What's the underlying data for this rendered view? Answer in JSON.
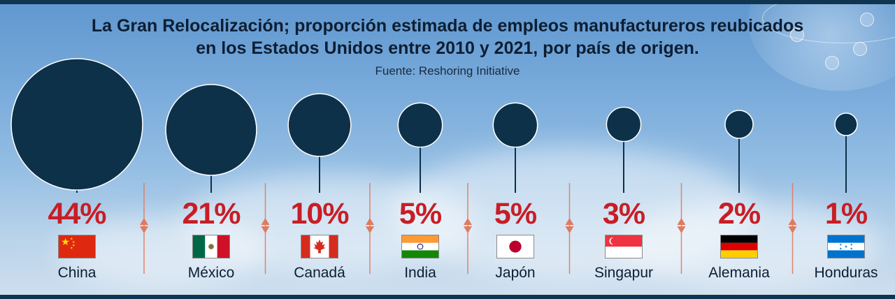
{
  "title_line1": "La Gran Relocalización; proporción estimada de empleos manufactureros reubicados",
  "title_line2": "en los Estados Unidos entre 2010 y 2021, por país de origen.",
  "source": "Fuente: Reshoring Initiative",
  "colors": {
    "bubble": "#0d3149",
    "percent": "#c81d25",
    "text": "#0d1e33"
  },
  "chart_data": {
    "type": "bubble",
    "title": "La Gran Relocalización; proporción estimada de empleos manufactureros reubicados en los Estados Unidos entre 2010 y 2021, por país de origen.",
    "value_unit": "%",
    "categories": [
      "China",
      "México",
      "Canadá",
      "India",
      "Japón",
      "Singapur",
      "Alemania",
      "Honduras"
    ],
    "values": [
      44,
      21,
      10,
      5,
      5,
      3,
      2,
      1
    ],
    "labels": [
      "44%",
      "21%",
      "10%",
      "5%",
      "5%",
      "3%",
      "2%",
      "1%"
    ],
    "flags": [
      "china-flag-icon",
      "mexico-flag-icon",
      "canada-flag-icon",
      "india-flag-icon",
      "japan-flag-icon",
      "singapore-flag-icon",
      "germany-flag-icon",
      "honduras-flag-icon"
    ],
    "legend": "none",
    "grid": false
  }
}
